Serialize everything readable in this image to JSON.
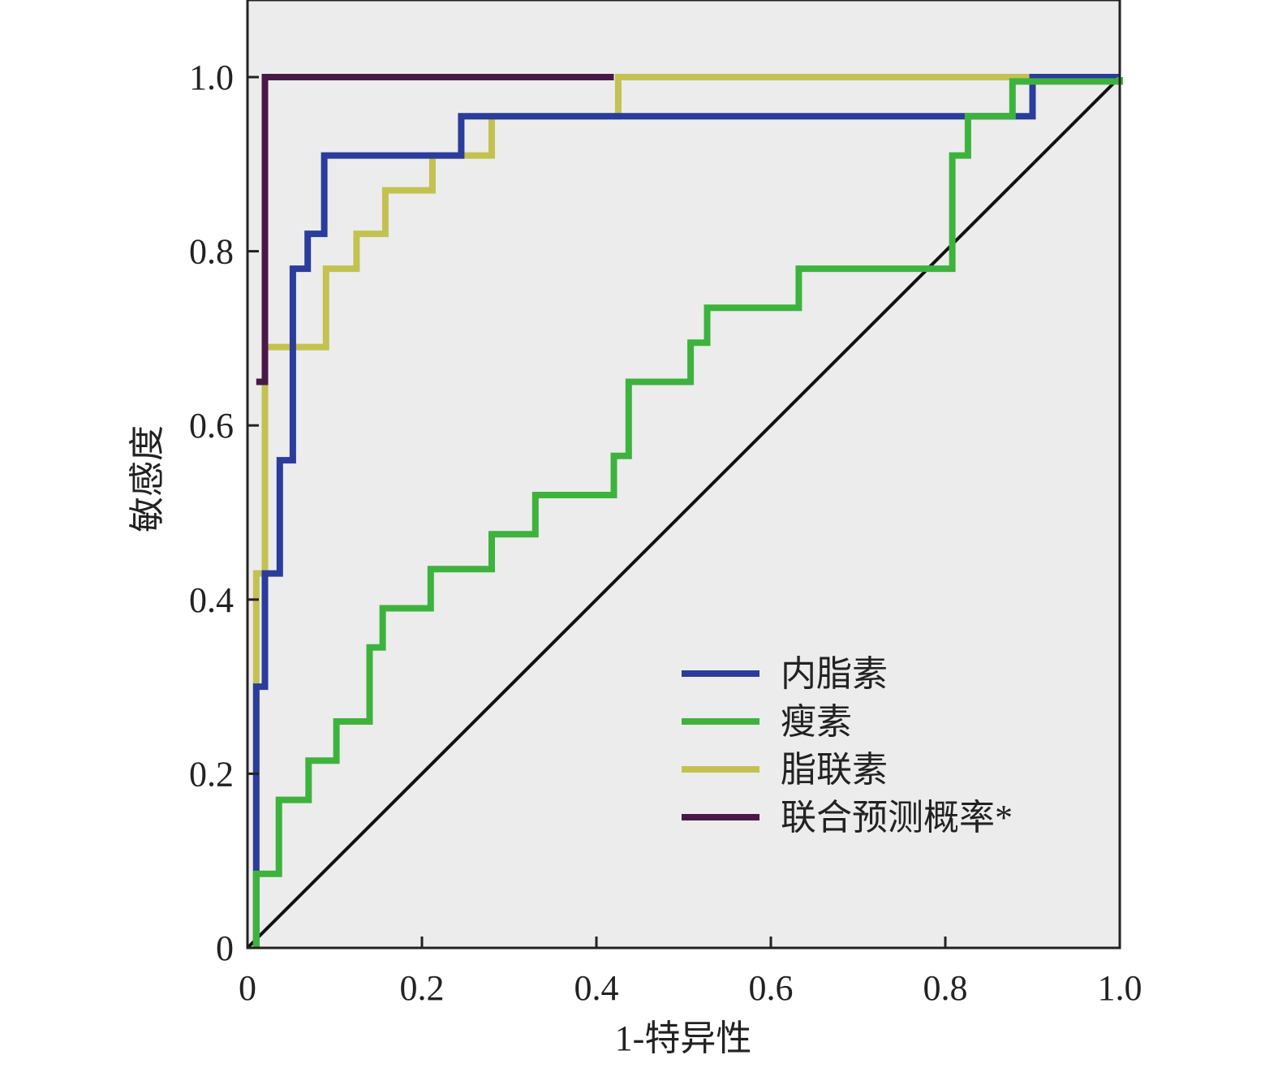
{
  "chart_data": {
    "type": "line",
    "title": "",
    "xlabel": "1-特异性",
    "ylabel": "敏感度",
    "xlim": [
      0,
      1.0
    ],
    "ylim": [
      0,
      1.09
    ],
    "xticks": [
      {
        "v": 0,
        "label": "0"
      },
      {
        "v": 0.2,
        "label": "0.2"
      },
      {
        "v": 0.4,
        "label": "0.4"
      },
      {
        "v": 0.6,
        "label": "0.6"
      },
      {
        "v": 0.8,
        "label": "0.8"
      },
      {
        "v": 1.0,
        "label": "1.0"
      }
    ],
    "yticks": [
      {
        "v": 0,
        "label": "0"
      },
      {
        "v": 0.2,
        "label": "0.2"
      },
      {
        "v": 0.4,
        "label": "0.4"
      },
      {
        "v": 0.6,
        "label": "0.6"
      },
      {
        "v": 0.8,
        "label": "0.8"
      },
      {
        "v": 1.0,
        "label": "1.0"
      }
    ],
    "grid": false,
    "legend_position": "bottom-right",
    "plot_background": "#ececec",
    "reference_line": {
      "color": "#111111",
      "points": [
        [
          0,
          0
        ],
        [
          1,
          1
        ]
      ]
    },
    "series": [
      {
        "name": "脂联素",
        "color": "#c3c251",
        "points": [
          [
            0.01,
            0
          ],
          [
            0.01,
            0.43
          ],
          [
            0.02,
            0.43
          ],
          [
            0.02,
            0.69
          ],
          [
            0.09,
            0.69
          ],
          [
            0.09,
            0.78
          ],
          [
            0.125,
            0.78
          ],
          [
            0.125,
            0.82
          ],
          [
            0.158,
            0.82
          ],
          [
            0.158,
            0.87
          ],
          [
            0.212,
            0.87
          ],
          [
            0.212,
            0.91
          ],
          [
            0.28,
            0.91
          ],
          [
            0.28,
            0.955
          ],
          [
            0.425,
            0.955
          ],
          [
            0.425,
            1.0
          ],
          [
            1.0,
            1.0
          ]
        ]
      },
      {
        "name": "内脂素",
        "color": "#2a3c9c",
        "points": [
          [
            0.01,
            0
          ],
          [
            0.01,
            0.3
          ],
          [
            0.02,
            0.3
          ],
          [
            0.02,
            0.43
          ],
          [
            0.037,
            0.43
          ],
          [
            0.037,
            0.56
          ],
          [
            0.052,
            0.56
          ],
          [
            0.052,
            0.78
          ],
          [
            0.069,
            0.78
          ],
          [
            0.069,
            0.82
          ],
          [
            0.088,
            0.82
          ],
          [
            0.088,
            0.91
          ],
          [
            0.245,
            0.91
          ],
          [
            0.245,
            0.955
          ],
          [
            0.9,
            0.955
          ],
          [
            0.9,
            1.0
          ],
          [
            1.0,
            1.0
          ]
        ]
      },
      {
        "name": "瘦素",
        "color": "#3db33d",
        "points": [
          [
            0.01,
            0
          ],
          [
            0.01,
            0.085
          ],
          [
            0.036,
            0.085
          ],
          [
            0.036,
            0.17
          ],
          [
            0.07,
            0.17
          ],
          [
            0.07,
            0.215
          ],
          [
            0.102,
            0.215
          ],
          [
            0.102,
            0.26
          ],
          [
            0.14,
            0.26
          ],
          [
            0.14,
            0.345
          ],
          [
            0.155,
            0.345
          ],
          [
            0.155,
            0.39
          ],
          [
            0.21,
            0.39
          ],
          [
            0.21,
            0.435
          ],
          [
            0.28,
            0.435
          ],
          [
            0.28,
            0.475
          ],
          [
            0.33,
            0.475
          ],
          [
            0.33,
            0.52
          ],
          [
            0.42,
            0.52
          ],
          [
            0.42,
            0.565
          ],
          [
            0.437,
            0.565
          ],
          [
            0.437,
            0.65
          ],
          [
            0.508,
            0.65
          ],
          [
            0.508,
            0.695
          ],
          [
            0.527,
            0.695
          ],
          [
            0.527,
            0.735
          ],
          [
            0.632,
            0.735
          ],
          [
            0.632,
            0.78
          ],
          [
            0.808,
            0.78
          ],
          [
            0.808,
            0.91
          ],
          [
            0.826,
            0.91
          ],
          [
            0.826,
            0.955
          ],
          [
            0.877,
            0.955
          ],
          [
            0.877,
            0.995
          ],
          [
            1.0,
            0.995
          ],
          [
            1.0,
            1.0
          ]
        ]
      },
      {
        "name": "联合预测概率*",
        "color": "#4a1848",
        "points": [
          [
            0.01,
            0.65
          ],
          [
            0.02,
            0.65
          ],
          [
            0.02,
            1.0
          ],
          [
            0.42,
            1.0
          ]
        ]
      }
    ],
    "legend_order": [
      "内脂素",
      "瘦素",
      "脂联素",
      "联合预测概率*"
    ]
  }
}
